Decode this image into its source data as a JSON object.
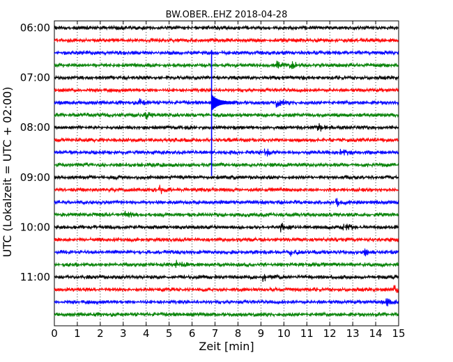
{
  "chart_data": {
    "type": "line",
    "title": "BW.OBER..EHZ 2018-04-28",
    "xlabel": "Zeit  [min]",
    "ylabel": "UTC (Lokalzeit = UTC + 02:00)",
    "xlim": [
      0,
      15
    ],
    "x_ticks": [
      "0",
      "1",
      "2",
      "3",
      "4",
      "5",
      "6",
      "7",
      "8",
      "9",
      "10",
      "11",
      "12",
      "13",
      "14",
      "15"
    ],
    "y_ticks": [
      {
        "label": "06:00",
        "trace": 0
      },
      {
        "label": "07:00",
        "trace": 4
      },
      {
        "label": "08:00",
        "trace": 8
      },
      {
        "label": "09:00",
        "trace": 12
      },
      {
        "label": "10:00",
        "trace": 16
      },
      {
        "label": "11:00",
        "trace": 20
      }
    ],
    "grid": {
      "vertical": true,
      "style": "dotted"
    },
    "trace_interval_minutes": 15,
    "trace_count": 24,
    "trace_colors": [
      "#000000",
      "#ff0000",
      "#0000ff",
      "#008000"
    ],
    "event": {
      "time_min": 6.85,
      "start_trace": 2,
      "end_trace": 11,
      "peak_trace": 6,
      "color": "#0000ff"
    },
    "small_events": [
      {
        "trace": 3,
        "time_min": 10.3
      },
      {
        "trace": 3,
        "time_min": 9.7
      },
      {
        "trace": 6,
        "time_min": 3.7
      },
      {
        "trace": 6,
        "time_min": 9.7
      },
      {
        "trace": 7,
        "time_min": 4.0
      },
      {
        "trace": 8,
        "time_min": 11.5
      },
      {
        "trace": 10,
        "time_min": 9.2
      },
      {
        "trace": 10,
        "time_min": 12.5
      },
      {
        "trace": 13,
        "time_min": 4.6
      },
      {
        "trace": 14,
        "time_min": 12.3
      },
      {
        "trace": 15,
        "time_min": 3.1
      },
      {
        "trace": 16,
        "time_min": 9.9
      },
      {
        "trace": 16,
        "time_min": 12.6
      },
      {
        "trace": 18,
        "time_min": 10.3
      },
      {
        "trace": 18,
        "time_min": 13.5
      },
      {
        "trace": 19,
        "time_min": 5.3
      },
      {
        "trace": 20,
        "time_min": 9.1
      },
      {
        "trace": 21,
        "time_min": 14.8
      },
      {
        "trace": 22,
        "time_min": 14.5
      }
    ]
  }
}
